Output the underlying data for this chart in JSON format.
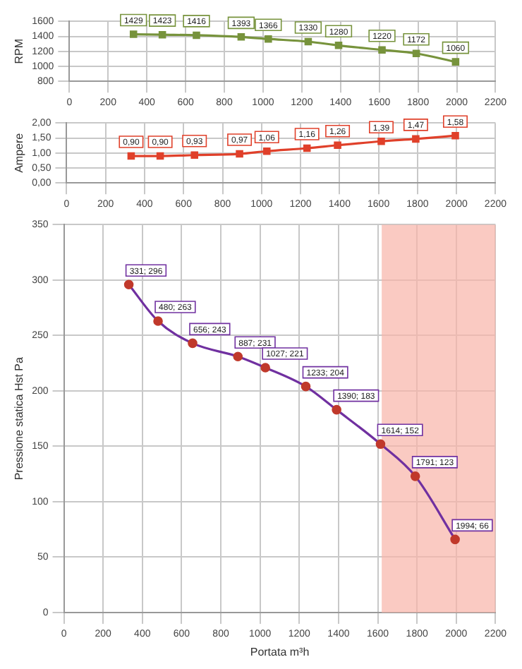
{
  "chart_data": [
    {
      "type": "line",
      "ylabel": "RPM",
      "x": [
        331,
        480,
        656,
        887,
        1027,
        1233,
        1390,
        1614,
        1791,
        1994
      ],
      "series": [
        {
          "color": "#77933c",
          "values": [
            1429,
            1423,
            1416,
            1393,
            1366,
            1330,
            1280,
            1220,
            1172,
            1060
          ]
        }
      ],
      "xlim": [
        0,
        2200
      ],
      "xticks": [
        0,
        200,
        400,
        600,
        800,
        1000,
        1200,
        1400,
        1600,
        1800,
        2000,
        2200
      ],
      "ylim": [
        800,
        1600
      ],
      "yticks": [
        800,
        1000,
        1200,
        1400,
        1600
      ],
      "grid": true,
      "marker": "square",
      "data_labels": true
    },
    {
      "type": "line",
      "ylabel": "Ampere",
      "x": [
        331,
        480,
        656,
        887,
        1027,
        1233,
        1390,
        1614,
        1791,
        1994
      ],
      "series": [
        {
          "color": "#e0402a",
          "values": [
            0.9,
            0.9,
            0.93,
            0.97,
            1.06,
            1.16,
            1.26,
            1.39,
            1.47,
            1.58
          ],
          "value_labels": [
            "0,90",
            "0,90",
            "0,93",
            "0,97",
            "1,06",
            "1,16",
            "1,26",
            "1,39",
            "1,47",
            "1,58"
          ]
        }
      ],
      "xlim": [
        0,
        2200
      ],
      "xticks": [
        0,
        200,
        400,
        600,
        800,
        1000,
        1200,
        1400,
        1600,
        1800,
        2000,
        2200
      ],
      "ylim": [
        0,
        2
      ],
      "yticks": [
        {
          "value": 0,
          "label": "0,00"
        },
        {
          "value": 0.5,
          "label": "0,50"
        },
        {
          "value": 1,
          "label": "1,00"
        },
        {
          "value": 1.5,
          "label": "1,50"
        },
        {
          "value": 2,
          "label": "2,00"
        }
      ],
      "grid": true,
      "marker": "square"
    },
    {
      "type": "line",
      "xlabel": "Portata m³h",
      "ylabel": "Pressione statica Hst Pa",
      "x": [
        331,
        480,
        656,
        887,
        1027,
        1233,
        1390,
        1614,
        1791,
        1994
      ],
      "series": [
        {
          "color": "#7030a0",
          "colors": [
            "#c0392b",
            "#c0392b",
            "#c0392b",
            "#c0392b",
            "#c0392b",
            "#c0392b",
            "#c0392b",
            "#c0392b",
            "#c0392b",
            "#c0392b"
          ],
          "values": [
            296,
            263,
            243,
            231,
            221,
            204,
            183,
            152,
            123,
            66
          ],
          "value_labels": [
            "331; 296",
            "480; 263",
            "656; 243",
            "887; 231",
            "1027; 221",
            "1233; 204",
            "1390; 183",
            "1614; 152",
            "1791; 123",
            "1994; 66"
          ]
        }
      ],
      "xlim": [
        0,
        2200
      ],
      "xticks": [
        0,
        200,
        400,
        600,
        800,
        1000,
        1200,
        1400,
        1600,
        1800,
        2000,
        2200
      ],
      "ylim": [
        0,
        350
      ],
      "yticks": [
        0,
        50,
        100,
        150,
        200,
        250,
        300,
        350
      ],
      "grid": true,
      "marker": "circle",
      "bands": [
        {
          "axis": "x",
          "from": 1620,
          "to": 2200,
          "color": "#f8b4a8"
        }
      ]
    }
  ]
}
